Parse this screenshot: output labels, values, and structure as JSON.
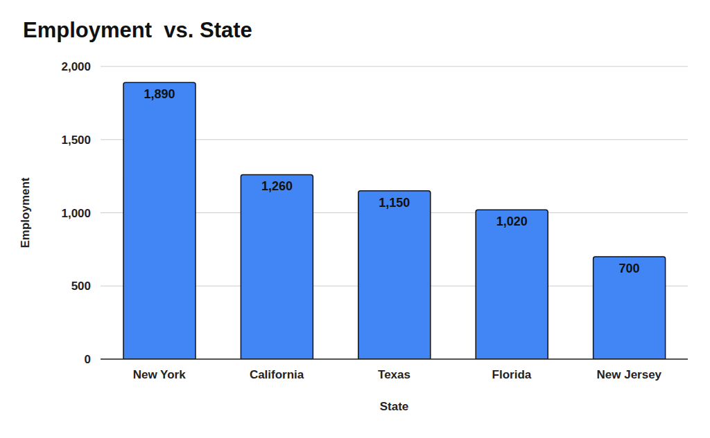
{
  "chart_data": {
    "type": "bar",
    "title": "Employment  vs. State",
    "x_label": "State",
    "y_label": "Employment",
    "categories": [
      "New York",
      "California",
      "Texas",
      "Florida",
      "New Jersey"
    ],
    "values": [
      1890,
      1260,
      1150,
      1020,
      700
    ],
    "value_labels": [
      "1,890",
      "1,260",
      "1,150",
      "1,020",
      "700"
    ],
    "color": "#4285f4",
    "ylim": [
      0,
      2000
    ],
    "yticks": [
      0,
      500,
      {
        "value": 1000,
        "label": "1,000"
      },
      {
        "value": 1500,
        "label": "1,500"
      },
      {
        "value": 2000,
        "label": "2,000"
      }
    ],
    "grid": true,
    "data_labels": true
  }
}
